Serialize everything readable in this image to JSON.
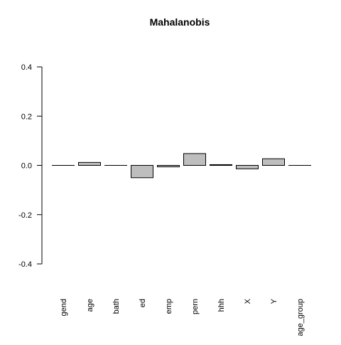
{
  "chart_data": {
    "type": "bar",
    "title": "Mahalanobis",
    "xlabel": "",
    "ylabel": "",
    "categories": [
      "gend",
      "age",
      "bath",
      "ed",
      "emp",
      "pern",
      "hhh",
      "X",
      "Y",
      "age_group"
    ],
    "values": [
      0.0,
      0.012,
      0.0,
      -0.05,
      -0.006,
      0.048,
      0.003,
      -0.014,
      0.027,
      0.0
    ],
    "ylim": [
      -0.4,
      0.4
    ],
    "yticks": [
      -0.4,
      -0.2,
      0.0,
      0.2,
      0.4
    ],
    "ytick_labels": [
      "-0.4",
      "-0.2",
      "0.0",
      "0.2",
      "0.4"
    ],
    "grid": false,
    "bar_fill": "#bebebe",
    "bar_stroke": "#000000"
  }
}
